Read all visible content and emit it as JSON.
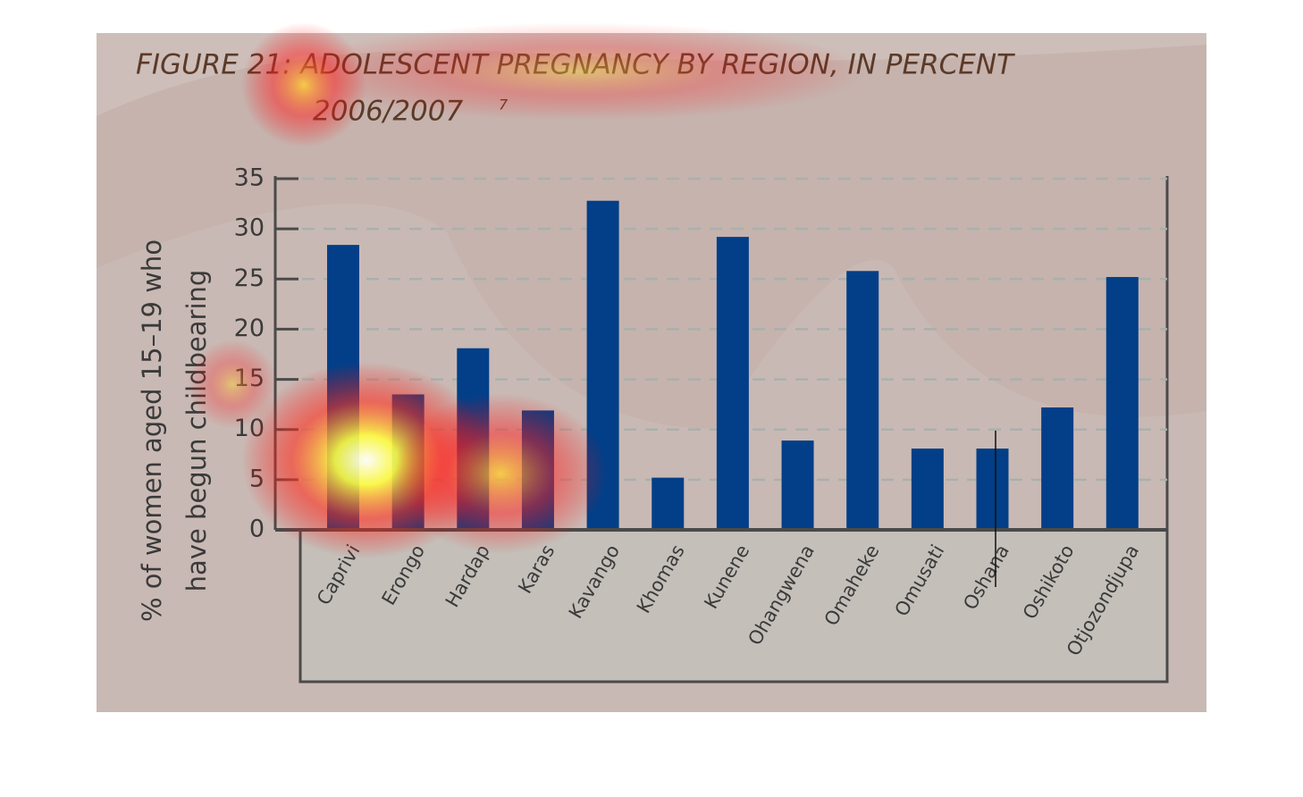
{
  "chart_data": {
    "type": "bar",
    "title": "FIGURE 21: ADOLESCENT PREGNANCY BY REGION, IN PERCENT",
    "subtitle": "2006/2007",
    "footnote_mark": "7",
    "y_label": [
      "% of women aged 15–19 who",
      "have begun childbearing"
    ],
    "categories": [
      "Caprivi",
      "Erongo",
      "Hardap",
      "Karas",
      "Kavango",
      "Khomas",
      "Kunene",
      "Ohangwena",
      "Omaheke",
      "Omusati",
      "Oshana",
      "Oshikoto",
      "Otjozondjupa"
    ],
    "values": [
      28.4,
      13.5,
      18.1,
      11.9,
      32.8,
      5.2,
      29.2,
      8.9,
      25.8,
      8.1,
      8.1,
      12.2,
      25.2
    ],
    "color": "#023f88",
    "ylim": [
      0,
      35
    ],
    "yticks": [
      0,
      5,
      10,
      15,
      20,
      25,
      30,
      35
    ],
    "grid": true
  }
}
